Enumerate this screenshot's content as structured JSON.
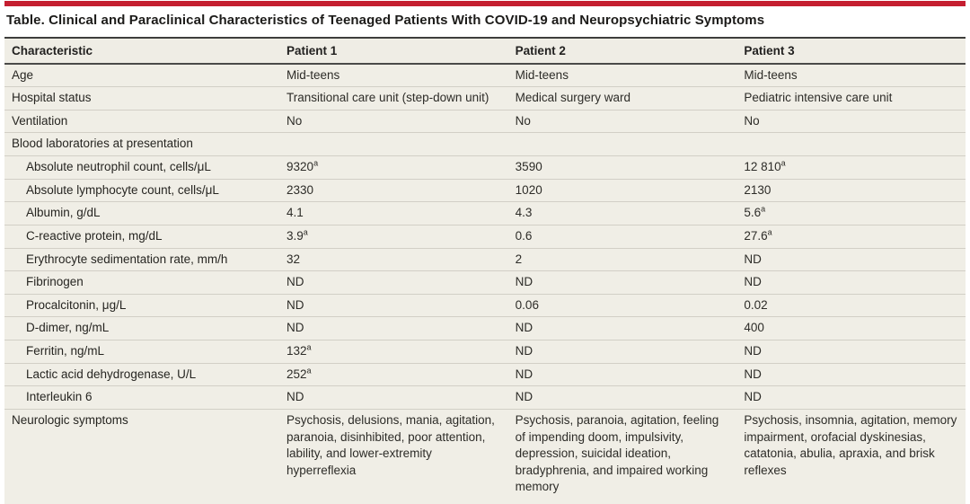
{
  "page": {
    "title": "Table. Clinical and Paraclinical Characteristics of Teenaged Patients With COVID-19 and Neuropsychiatric Symptoms",
    "accent_color": "#c51f30",
    "table_background_color": "#f0eee6"
  },
  "table": {
    "columns": [
      "Characteristic",
      "Patient 1",
      "Patient 2",
      "Patient 3"
    ],
    "footnote_marker": "a",
    "rows": [
      {
        "label": "Age",
        "indent": 0,
        "values": [
          "Mid-teens",
          "Mid-teens",
          "Mid-teens"
        ]
      },
      {
        "label": "Hospital status",
        "indent": 0,
        "values": [
          "Transitional care unit (step-down unit)",
          "Medical surgery ward",
          "Pediatric intensive care unit"
        ]
      },
      {
        "label": "Ventilation",
        "indent": 0,
        "values": [
          "No",
          "No",
          "No"
        ]
      },
      {
        "label": "Blood laboratories at presentation",
        "indent": 0,
        "values": [
          "",
          "",
          ""
        ]
      },
      {
        "label": "Absolute neutrophil count, cells/μL",
        "indent": 1,
        "values": [
          "9320^a",
          "3590",
          "12 810^a"
        ]
      },
      {
        "label": "Absolute lymphocyte count, cells/μL",
        "indent": 1,
        "values": [
          "2330",
          "1020",
          "2130"
        ]
      },
      {
        "label": "Albumin, g/dL",
        "indent": 1,
        "values": [
          "4.1",
          "4.3",
          "5.6^a"
        ]
      },
      {
        "label": "C-reactive protein, mg/dL",
        "indent": 1,
        "values": [
          "3.9^a",
          "0.6",
          "27.6^a"
        ]
      },
      {
        "label": "Erythrocyte sedimentation rate, mm/h",
        "indent": 1,
        "values": [
          "32",
          "2",
          "ND"
        ]
      },
      {
        "label": "Fibrinogen",
        "indent": 1,
        "values": [
          "ND",
          "ND",
          "ND"
        ]
      },
      {
        "label": "Procalcitonin, μg/L",
        "indent": 1,
        "values": [
          "ND",
          "0.06",
          "0.02"
        ]
      },
      {
        "label": "D-dimer, ng/mL",
        "indent": 1,
        "values": [
          "ND",
          "ND",
          "400"
        ]
      },
      {
        "label": "Ferritin, ng/mL",
        "indent": 1,
        "values": [
          "132^a",
          "ND",
          "ND"
        ]
      },
      {
        "label": "Lactic acid dehydrogenase, U/L",
        "indent": 1,
        "values": [
          "252^a",
          "ND",
          "ND"
        ]
      },
      {
        "label": "Interleukin 6",
        "indent": 1,
        "values": [
          "ND",
          "ND",
          "ND"
        ]
      },
      {
        "label": "Neurologic symptoms",
        "indent": 0,
        "values": [
          "Psychosis, delusions, mania, agitation, paranoia, disinhibited, poor attention, lability, and lower-extremity hyperreflexia",
          "Psychosis, paranoia, agitation, feeling of impending doom, impulsivity, depression, suicidal ideation, bradyphrenia, and impaired working memory",
          "Psychosis, insomnia, agitation, memory impairment, orofacial dyskinesias, catatonia, abulia, apraxia, and brisk reflexes"
        ]
      }
    ]
  }
}
